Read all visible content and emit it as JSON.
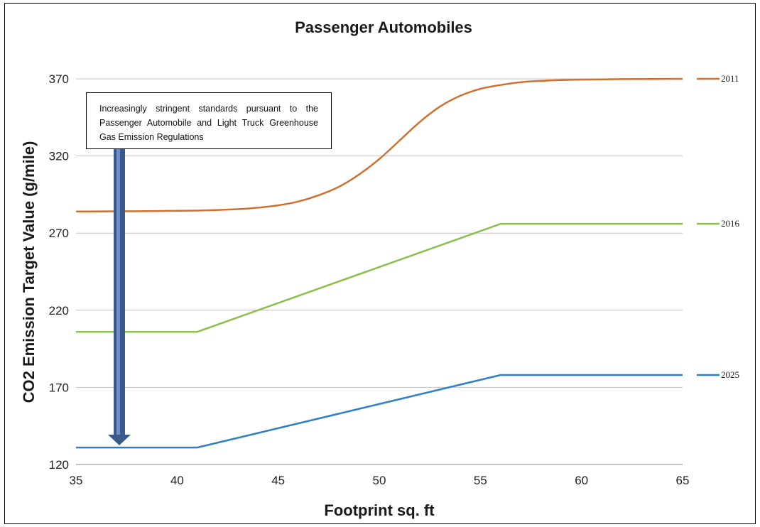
{
  "chart_data": {
    "type": "line",
    "title": "Passenger Automobiles",
    "xlabel": "Footprint sq. ft",
    "ylabel": "CO2 Emission Target Value  (g/mile)",
    "xlim": [
      35,
      65
    ],
    "ylim": [
      120,
      370
    ],
    "xticks": [
      35,
      40,
      45,
      50,
      55,
      60,
      65
    ],
    "yticks": [
      120,
      170,
      220,
      270,
      320,
      370
    ],
    "grid": "horizontal",
    "legend": "right",
    "series": [
      {
        "name": "2011",
        "color": "#d07030",
        "x": [
          35,
          38,
          41,
          43,
          44,
          45,
          46,
          47,
          48,
          49,
          50,
          51,
          52,
          53,
          54,
          55,
          56,
          57,
          58,
          59,
          60,
          62,
          65
        ],
        "y": [
          284,
          284.2,
          284.6,
          285.5,
          286.5,
          288,
          290.5,
          294.5,
          300,
          308,
          318,
          330,
          342,
          352,
          359,
          363.5,
          366,
          367.8,
          368.7,
          369.2,
          369.5,
          369.8,
          370
        ]
      },
      {
        "name": "2016",
        "color": "#8cbf4a",
        "x": [
          35,
          41,
          56,
          65
        ],
        "y": [
          206,
          206,
          276,
          276
        ]
      },
      {
        "name": "2025",
        "color": "#2e7fc4",
        "x": [
          35,
          41,
          56,
          65
        ],
        "y": [
          131,
          131,
          178,
          178
        ]
      }
    ],
    "annotation": {
      "text": "Increasingly stringent standards pursuant to the Passenger Automobile and Light Truck Greenhouse Gas Emission Regulations",
      "arrow_color": "#3a5a8c"
    }
  }
}
